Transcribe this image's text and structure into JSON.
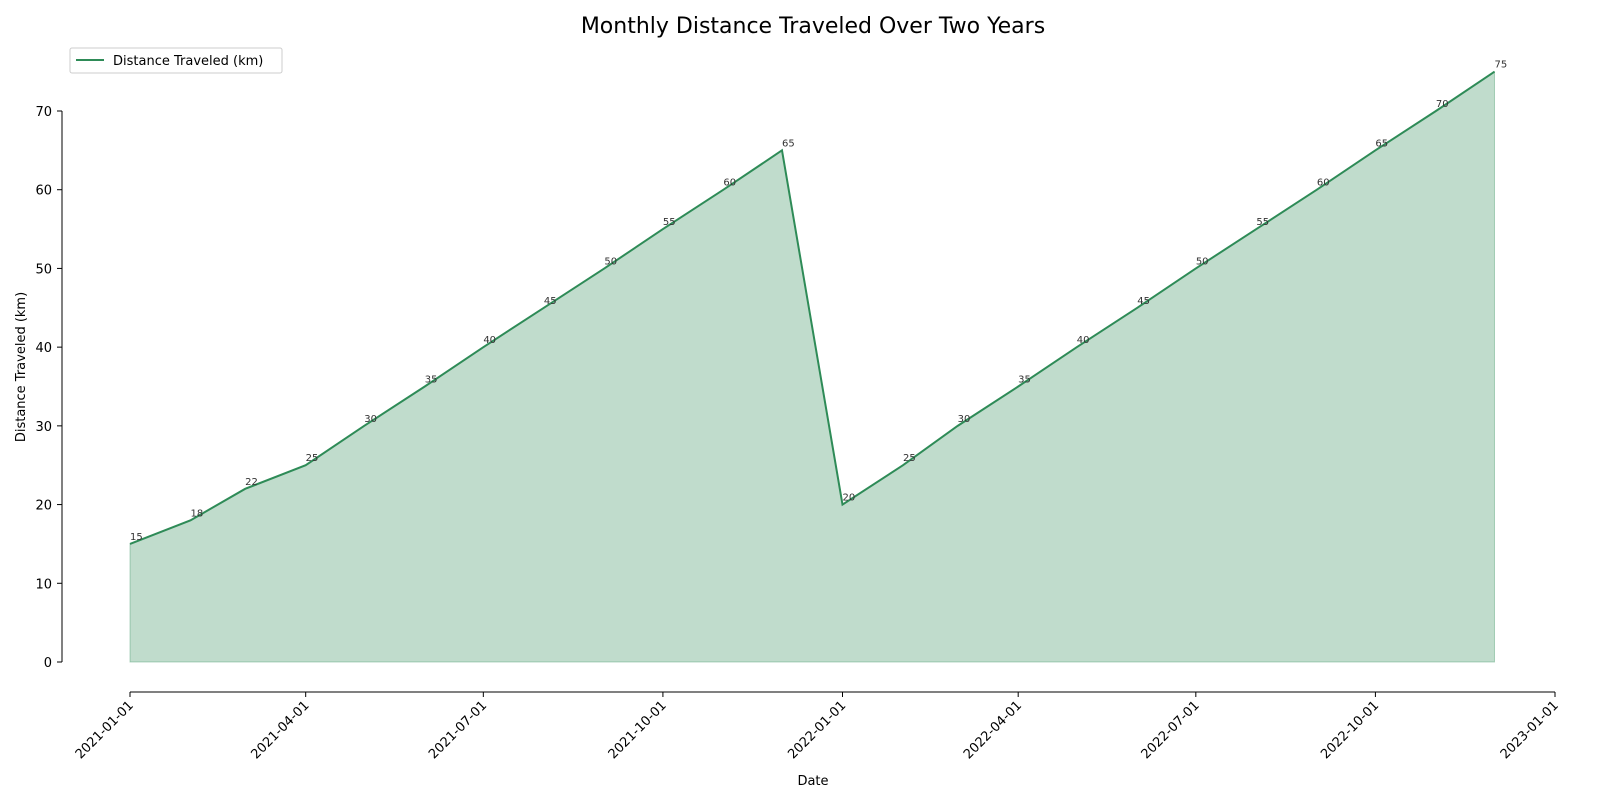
{
  "chart_data": {
    "type": "area",
    "title": "Monthly Distance Traveled Over Two Years",
    "xlabel": "Date",
    "ylabel": "Distance Traveled (km)",
    "x": [
      "2021-01-01",
      "2021-02-01",
      "2021-03-01",
      "2021-04-01",
      "2021-05-01",
      "2021-06-01",
      "2021-07-01",
      "2021-08-01",
      "2021-09-01",
      "2021-10-01",
      "2021-11-01",
      "2021-12-01",
      "2022-01-01",
      "2022-02-01",
      "2022-03-01",
      "2022-04-01",
      "2022-05-01",
      "2022-06-01",
      "2022-07-01",
      "2022-08-01",
      "2022-09-01",
      "2022-10-01",
      "2022-11-01",
      "2022-12-01"
    ],
    "series": [
      {
        "name": "Distance Traveled (km)",
        "values": [
          15,
          18,
          22,
          25,
          30,
          35,
          40,
          45,
          50,
          55,
          60,
          65,
          20,
          25,
          30,
          35,
          40,
          45,
          50,
          55,
          60,
          65,
          70,
          75
        ]
      }
    ],
    "xlim": [
      "2021-01-01",
      "2023-01-01"
    ],
    "ylim": [
      0,
      75
    ],
    "x_ticks": [
      "2021-01-01",
      "2021-04-01",
      "2021-07-01",
      "2021-10-01",
      "2022-01-01",
      "2022-04-01",
      "2022-07-01",
      "2022-10-01",
      "2023-01-01"
    ],
    "y_ticks": [
      0,
      10,
      20,
      30,
      40,
      50,
      60,
      70
    ],
    "grid": false,
    "legend": "top-left",
    "colors": {
      "line": "#2e8b57",
      "fill": "#2e8b57"
    }
  }
}
